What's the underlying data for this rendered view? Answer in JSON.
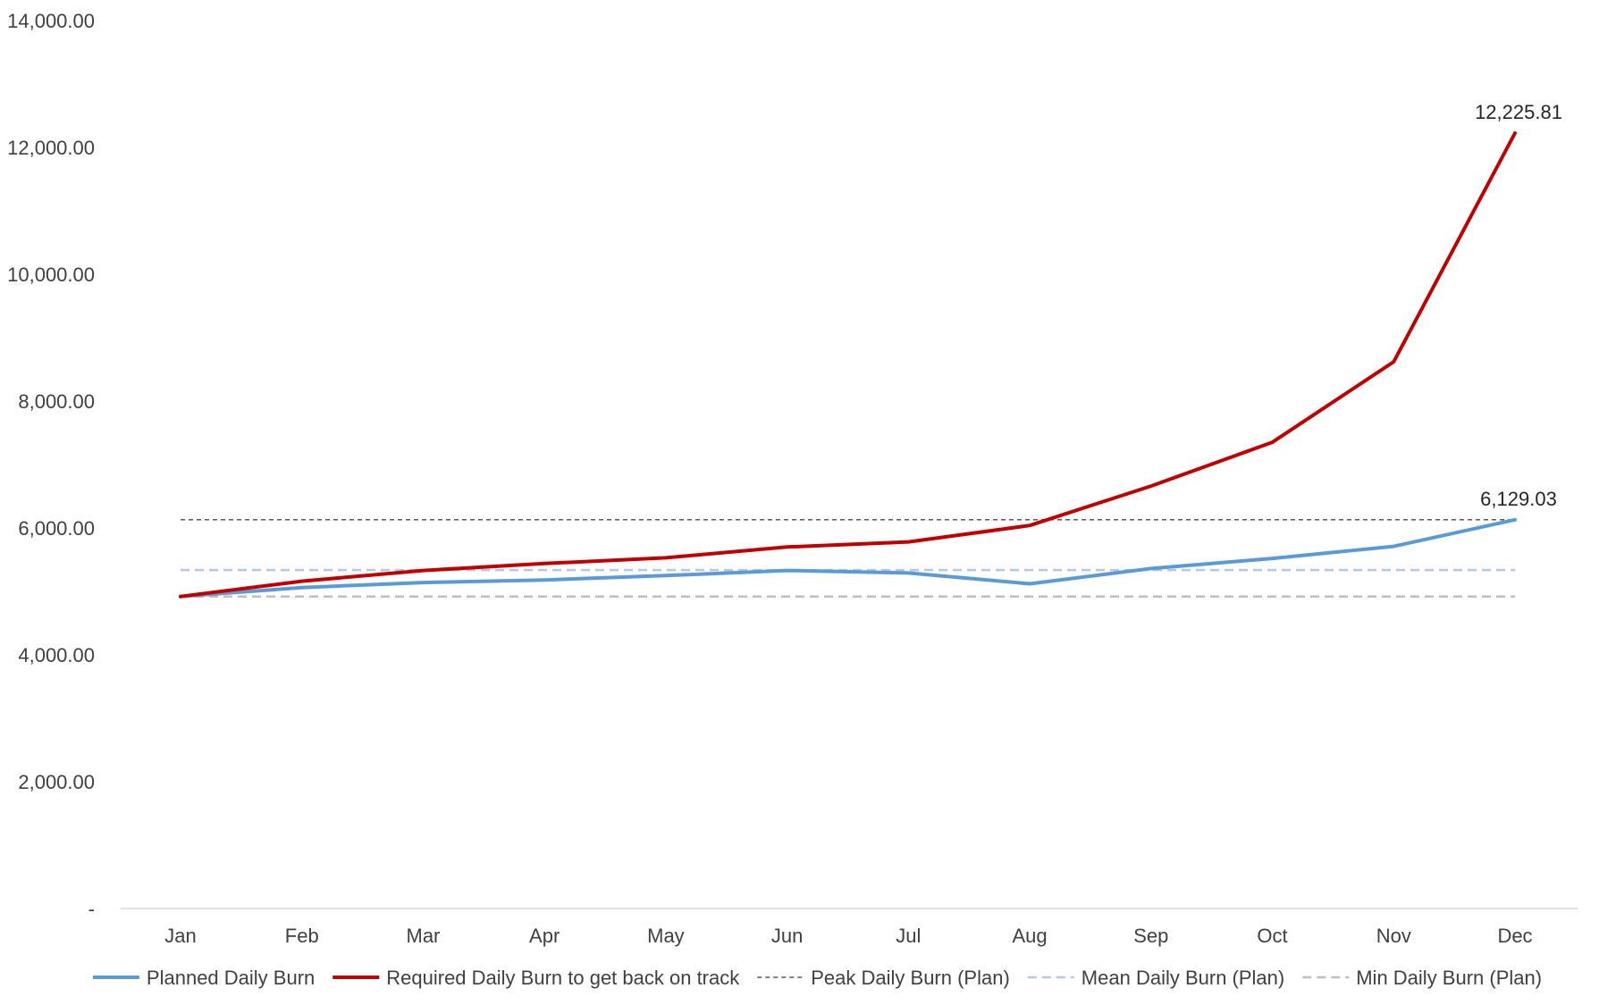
{
  "chart_data": {
    "type": "line",
    "title": "",
    "xlabel": "",
    "ylabel": "",
    "categories": [
      "Jan",
      "Feb",
      "Mar",
      "Apr",
      "May",
      "Jun",
      "Jul",
      "Aug",
      "Sep",
      "Oct",
      "Nov",
      "Dec"
    ],
    "ylim": [
      0,
      14000
    ],
    "yticks": [
      0,
      2000,
      4000,
      6000,
      8000,
      10000,
      12000,
      14000
    ],
    "ytick_labels": [
      "-",
      "2,000.00",
      "4,000.00",
      "6,000.00",
      "8,000.00",
      "10,000.00",
      "12,000.00",
      "14,000.00"
    ],
    "grid": false,
    "legend_position": "bottom",
    "series": [
      {
        "name": "Planned Daily Burn",
        "color": "#5b9bd5",
        "style": "solid",
        "values": [
          4920,
          5060,
          5140,
          5180,
          5250,
          5330,
          5290,
          5120,
          5360,
          5520,
          5710,
          6129.03
        ]
      },
      {
        "name": "Required Daily Burn to get back on track",
        "color": "#c00000",
        "style": "solid",
        "values": [
          4920,
          5160,
          5330,
          5440,
          5530,
          5700,
          5780,
          6040,
          6660,
          7350,
          8620,
          12225.81
        ]
      },
      {
        "name": "Peak Daily Burn (Plan)",
        "color": "#595959",
        "style": "dash-fine",
        "values": [
          6129.03,
          6129.03,
          6129.03,
          6129.03,
          6129.03,
          6129.03,
          6129.03,
          6129.03,
          6129.03,
          6129.03,
          6129.03,
          6129.03
        ]
      },
      {
        "name": "Mean Daily Burn (Plan)",
        "color": "#b4c7e7",
        "style": "dash",
        "values": [
          5336,
          5336,
          5336,
          5336,
          5336,
          5336,
          5336,
          5336,
          5336,
          5336,
          5336,
          5336
        ]
      },
      {
        "name": "Min Daily Burn (Plan)",
        "color": "#bfbfbf",
        "style": "dash",
        "values": [
          4920,
          4920,
          4920,
          4920,
          4920,
          4920,
          4920,
          4920,
          4920,
          4920,
          4920,
          4920
        ]
      }
    ],
    "annotations": [
      {
        "series": 1,
        "index": 11,
        "text": "12,225.81"
      },
      {
        "series": 0,
        "index": 11,
        "text": "6,129.03"
      }
    ]
  }
}
